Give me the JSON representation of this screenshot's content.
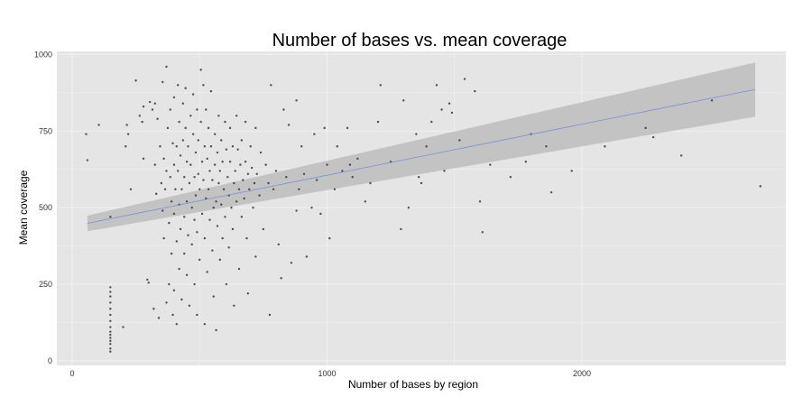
{
  "chart_data": {
    "type": "scatter",
    "title": "Number of bases vs. mean coverage",
    "xlabel": "Number of bases by region",
    "ylabel": "Mean coverage",
    "xlim": [
      -60,
      2800
    ],
    "ylim": [
      -15,
      1010
    ],
    "x_ticks": [
      0,
      1000,
      2000
    ],
    "y_ticks": [
      0,
      250,
      500,
      750,
      1000
    ],
    "grid": true,
    "background": "#e5e5e5",
    "gridline_color": "#f2f2f2",
    "point_color": "#333333",
    "fit_color": "#7b8fd4",
    "band_color": "#bdbdbd",
    "fit_line": {
      "method": "linear",
      "x": [
        60,
        2680
      ],
      "y": [
        449,
        886
      ],
      "band_lower": [
        423,
        797
      ],
      "band_upper": [
        474,
        974
      ]
    },
    "points": [
      [
        55,
        740
      ],
      [
        60,
        655
      ],
      [
        105,
        770
      ],
      [
        150,
        470
      ],
      [
        150,
        30
      ],
      [
        150,
        40
      ],
      [
        150,
        55
      ],
      [
        150,
        65
      ],
      [
        150,
        75
      ],
      [
        150,
        85
      ],
      [
        150,
        95
      ],
      [
        150,
        110
      ],
      [
        150,
        130
      ],
      [
        150,
        150
      ],
      [
        150,
        170
      ],
      [
        150,
        190
      ],
      [
        150,
        210
      ],
      [
        150,
        225
      ],
      [
        150,
        240
      ],
      [
        200,
        110
      ],
      [
        210,
        700
      ],
      [
        215,
        770
      ],
      [
        220,
        740
      ],
      [
        230,
        560
      ],
      [
        250,
        915
      ],
      [
        265,
        800
      ],
      [
        275,
        780
      ],
      [
        280,
        660
      ],
      [
        280,
        830
      ],
      [
        295,
        265
      ],
      [
        300,
        255
      ],
      [
        305,
        845
      ],
      [
        315,
        820
      ],
      [
        320,
        170
      ],
      [
        325,
        840
      ],
      [
        325,
        640
      ],
      [
        330,
        545
      ],
      [
        335,
        790
      ],
      [
        340,
        140
      ],
      [
        345,
        700
      ],
      [
        350,
        580
      ],
      [
        355,
        910
      ],
      [
        355,
        490
      ],
      [
        360,
        660
      ],
      [
        360,
        400
      ],
      [
        365,
        560
      ],
      [
        370,
        190
      ],
      [
        370,
        960
      ],
      [
        370,
        620
      ],
      [
        375,
        760
      ],
      [
        380,
        450
      ],
      [
        380,
        250
      ],
      [
        385,
        820
      ],
      [
        385,
        600
      ],
      [
        390,
        520
      ],
      [
        390,
        350
      ],
      [
        395,
        710
      ],
      [
        395,
        150
      ],
      [
        400,
        860
      ],
      [
        400,
        640
      ],
      [
        400,
        480
      ],
      [
        400,
        230
      ],
      [
        405,
        560
      ],
      [
        410,
        700
      ],
      [
        410,
        390
      ],
      [
        410,
        120
      ],
      [
        415,
        900
      ],
      [
        415,
        620
      ],
      [
        420,
        780
      ],
      [
        420,
        510
      ],
      [
        420,
        300
      ],
      [
        425,
        670
      ],
      [
        425,
        430
      ],
      [
        430,
        560
      ],
      [
        430,
        200
      ],
      [
        435,
        840
      ],
      [
        435,
        720
      ],
      [
        440,
        600
      ],
      [
        440,
        470
      ],
      [
        440,
        350
      ],
      [
        445,
        890
      ],
      [
        445,
        760
      ],
      [
        450,
        650
      ],
      [
        450,
        520
      ],
      [
        450,
        280
      ],
      [
        455,
        700
      ],
      [
        455,
        410
      ],
      [
        460,
        580
      ],
      [
        460,
        180
      ],
      [
        465,
        800
      ],
      [
        465,
        640
      ],
      [
        470,
        500
      ],
      [
        470,
        380
      ],
      [
        475,
        870
      ],
      [
        475,
        740
      ],
      [
        480,
        600
      ],
      [
        480,
        460
      ],
      [
        480,
        250
      ],
      [
        485,
        680
      ],
      [
        485,
        540
      ],
      [
        490,
        820
      ],
      [
        490,
        420
      ],
      [
        490,
        150
      ],
      [
        495,
        720
      ],
      [
        495,
        610
      ],
      [
        500,
        560
      ],
      [
        500,
        330
      ],
      [
        505,
        950
      ],
      [
        505,
        780
      ],
      [
        510,
        650
      ],
      [
        510,
        480
      ],
      [
        515,
        900
      ],
      [
        515,
        590
      ],
      [
        520,
        700
      ],
      [
        520,
        400
      ],
      [
        520,
        120
      ],
      [
        525,
        820
      ],
      [
        525,
        530
      ],
      [
        530,
        660
      ],
      [
        530,
        290
      ],
      [
        535,
        760
      ],
      [
        535,
        560
      ],
      [
        540,
        620
      ],
      [
        540,
        460
      ],
      [
        545,
        880
      ],
      [
        545,
        700
      ],
      [
        550,
        590
      ],
      [
        550,
        360
      ],
      [
        555,
        500
      ],
      [
        555,
        210
      ],
      [
        560,
        740
      ],
      [
        560,
        640
      ],
      [
        565,
        520
      ],
      [
        565,
        100
      ],
      [
        570,
        680
      ],
      [
        570,
        440
      ],
      [
        575,
        800
      ],
      [
        575,
        580
      ],
      [
        580,
        620
      ],
      [
        580,
        330
      ],
      [
        585,
        720
      ],
      [
        585,
        510
      ],
      [
        590,
        650
      ],
      [
        590,
        400
      ],
      [
        595,
        560
      ],
      [
        600,
        780
      ],
      [
        600,
        470
      ],
      [
        605,
        690
      ],
      [
        605,
        250
      ],
      [
        610,
        600
      ],
      [
        615,
        540
      ],
      [
        615,
        370
      ],
      [
        620,
        760
      ],
      [
        620,
        650
      ],
      [
        625,
        500
      ],
      [
        630,
        700
      ],
      [
        630,
        430
      ],
      [
        635,
        580
      ],
      [
        635,
        180
      ],
      [
        640,
        620
      ],
      [
        645,
        800
      ],
      [
        645,
        520
      ],
      [
        650,
        690
      ],
      [
        655,
        560
      ],
      [
        655,
        300
      ],
      [
        660,
        640
      ],
      [
        665,
        720
      ],
      [
        665,
        470
      ],
      [
        670,
        590
      ],
      [
        675,
        530
      ],
      [
        680,
        780
      ],
      [
        680,
        650
      ],
      [
        685,
        400
      ],
      [
        690,
        610
      ],
      [
        690,
        220
      ],
      [
        695,
        560
      ],
      [
        700,
        700
      ],
      [
        705,
        630
      ],
      [
        710,
        500
      ],
      [
        715,
        580
      ],
      [
        720,
        760
      ],
      [
        720,
        340
      ],
      [
        725,
        610
      ],
      [
        735,
        540
      ],
      [
        740,
        680
      ],
      [
        750,
        430
      ],
      [
        760,
        640
      ],
      [
        770,
        580
      ],
      [
        775,
        150
      ],
      [
        780,
        900
      ],
      [
        790,
        560
      ],
      [
        800,
        620
      ],
      [
        810,
        380
      ],
      [
        820,
        270
      ],
      [
        830,
        820
      ],
      [
        840,
        600
      ],
      [
        850,
        770
      ],
      [
        860,
        320
      ],
      [
        880,
        850
      ],
      [
        880,
        490
      ],
      [
        890,
        560
      ],
      [
        900,
        700
      ],
      [
        910,
        610
      ],
      [
        920,
        340
      ],
      [
        940,
        500
      ],
      [
        950,
        740
      ],
      [
        960,
        590
      ],
      [
        975,
        480
      ],
      [
        990,
        760
      ],
      [
        1000,
        640
      ],
      [
        1010,
        400
      ],
      [
        1030,
        560
      ],
      [
        1040,
        700
      ],
      [
        1060,
        620
      ],
      [
        1080,
        760
      ],
      [
        1090,
        640
      ],
      [
        1100,
        600
      ],
      [
        1120,
        660
      ],
      [
        1150,
        520
      ],
      [
        1170,
        580
      ],
      [
        1200,
        780
      ],
      [
        1210,
        900
      ],
      [
        1250,
        650
      ],
      [
        1290,
        430
      ],
      [
        1300,
        850
      ],
      [
        1320,
        500
      ],
      [
        1350,
        740
      ],
      [
        1360,
        600
      ],
      [
        1370,
        580
      ],
      [
        1390,
        700
      ],
      [
        1410,
        780
      ],
      [
        1430,
        900
      ],
      [
        1450,
        820
      ],
      [
        1460,
        620
      ],
      [
        1480,
        840
      ],
      [
        1490,
        810
      ],
      [
        1520,
        720
      ],
      [
        1540,
        920
      ],
      [
        1580,
        880
      ],
      [
        1600,
        520
      ],
      [
        1610,
        420
      ],
      [
        1640,
        640
      ],
      [
        1720,
        600
      ],
      [
        1780,
        650
      ],
      [
        1800,
        740
      ],
      [
        1860,
        700
      ],
      [
        1880,
        550
      ],
      [
        1960,
        620
      ],
      [
        2090,
        700
      ],
      [
        2280,
        730
      ],
      [
        2250,
        760
      ],
      [
        2390,
        670
      ],
      [
        2510,
        850
      ],
      [
        2700,
        570
      ]
    ]
  }
}
